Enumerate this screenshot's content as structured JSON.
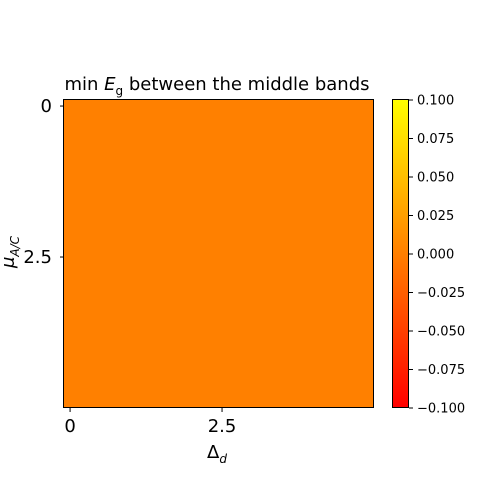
{
  "chart_data": {
    "type": "heatmap",
    "title": {
      "prefix": "min ",
      "symbol": "E",
      "subscript": "g",
      "suffix": " between the middle bands"
    },
    "xlabel": {
      "symbol": "Δ",
      "subscript": "d"
    },
    "ylabel": {
      "symbol": "μ",
      "subscript": "A/C"
    },
    "x_ticks": [
      {
        "value": 0,
        "label": "0"
      },
      {
        "value": 2.5,
        "label": "2.5"
      }
    ],
    "y_ticks": [
      {
        "value": 0,
        "label": "0"
      },
      {
        "value": 2.5,
        "label": "2.5"
      }
    ],
    "xlim": [
      -0.1,
      5.0
    ],
    "ylim": [
      5.0,
      -0.1
    ],
    "y_inverted": true,
    "values": [
      [
        0.0
      ]
    ],
    "colormap": "autumn",
    "colormap_colors": [
      "#ff0000",
      "#ffff00"
    ],
    "vmin": -0.1,
    "vmax": 0.1,
    "colorbar_ticks": [
      {
        "value": 0.1,
        "label": "0.100"
      },
      {
        "value": 0.075,
        "label": "0.075"
      },
      {
        "value": 0.05,
        "label": "0.050"
      },
      {
        "value": 0.025,
        "label": "0.025"
      },
      {
        "value": 0.0,
        "label": "0.000"
      },
      {
        "value": -0.025,
        "label": "−0.025"
      },
      {
        "value": -0.05,
        "label": "−0.050"
      },
      {
        "value": -0.075,
        "label": "−0.075"
      },
      {
        "value": -0.1,
        "label": "−0.100"
      }
    ],
    "grid": false,
    "legend": "none"
  }
}
